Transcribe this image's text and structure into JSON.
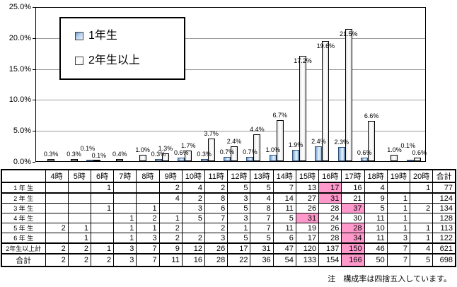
{
  "chart_data": {
    "type": "bar",
    "title": "",
    "xlabel": "",
    "ylabel": "",
    "unit": "%",
    "ylim": [
      0,
      25
    ],
    "grid": true,
    "legend_position": "inside-top-left",
    "categories": [
      "4時",
      "5時",
      "6時",
      "7時",
      "8時",
      "9時",
      "10時",
      "11時",
      "12時",
      "13時",
      "14時",
      "15時",
      "16時",
      "17時",
      "18時",
      "19時",
      "20時"
    ],
    "yticks": [
      {
        "label": "25.0%",
        "value": 25
      },
      {
        "label": "20.0%",
        "value": 20
      },
      {
        "label": "15.0%",
        "value": 15
      },
      {
        "label": "10.0%",
        "value": 10
      },
      {
        "label": "5.0%",
        "value": 5
      },
      {
        "label": "0.0%",
        "value": 0
      }
    ],
    "series": [
      {
        "name": "1年生",
        "color": "#a9c9e8",
        "border_color": "#31517a",
        "values": [
          null,
          null,
          0.1,
          null,
          null,
          0.3,
          0.6,
          0.3,
          0.7,
          0.7,
          1.0,
          1.9,
          2.4,
          2.3,
          0.6,
          null,
          0.1
        ]
      },
      {
        "name": "2年生以上",
        "color": "#ffffff",
        "border_color": "#000000",
        "values": [
          0.3,
          0.3,
          0.1,
          0.4,
          1.0,
          1.3,
          1.7,
          3.7,
          2.4,
          4.4,
          6.7,
          17.2,
          19.6,
          21.5,
          6.6,
          1.0,
          0.6
        ]
      }
    ]
  },
  "table": {
    "col_headers": [
      "",
      "4時",
      "5時",
      "6時",
      "7時",
      "8時",
      "9時",
      "10時",
      "11時",
      "12時",
      "13時",
      "14時",
      "15時",
      "16時",
      "17時",
      "18時",
      "19時",
      "20時",
      "合計"
    ],
    "highlight_color": "#ff99cc",
    "rows": [
      {
        "label": "1 年 生",
        "values": [
          "",
          "",
          "1",
          "",
          "",
          "2",
          "4",
          "2",
          "5",
          "5",
          "7",
          "13",
          "17",
          "16",
          "4",
          "",
          "1",
          "77"
        ],
        "highlight_col": 12
      },
      {
        "label": "2 年 生",
        "values": [
          "",
          "",
          "",
          "",
          "",
          "4",
          "2",
          "8",
          "3",
          "4",
          "14",
          "27",
          "31",
          "21",
          "9",
          "1",
          "",
          "124"
        ],
        "highlight_col": 12
      },
      {
        "label": "3 年 生",
        "values": [
          "",
          "",
          "1",
          "",
          "1",
          "",
          "3",
          "6",
          "5",
          "8",
          "11",
          "26",
          "28",
          "37",
          "5",
          "1",
          "2",
          "134"
        ],
        "highlight_col": 13
      },
      {
        "label": "4 年 生",
        "values": [
          "",
          "",
          "",
          "1",
          "2",
          "1",
          "5",
          "7",
          "3",
          "7",
          "5",
          "31",
          "24",
          "30",
          "11",
          "1",
          "",
          "128"
        ],
        "highlight_col": 11
      },
      {
        "label": "5 年 生",
        "values": [
          "2",
          "1",
          "",
          "1",
          "1",
          "2",
          "",
          "2",
          "1",
          "7",
          "11",
          "19",
          "26",
          "28",
          "10",
          "1",
          "1",
          "113"
        ],
        "highlight_col": 13
      },
      {
        "label": "6 年 生",
        "values": [
          "",
          "1",
          "",
          "1",
          "3",
          "2",
          "2",
          "3",
          "5",
          "5",
          "6",
          "17",
          "28",
          "34",
          "11",
          "3",
          "1",
          "122"
        ],
        "highlight_col": 13
      },
      {
        "label": "2年生以上計",
        "values": [
          "2",
          "2",
          "1",
          "3",
          "7",
          "9",
          "12",
          "26",
          "17",
          "31",
          "47",
          "120",
          "137",
          "150",
          "46",
          "7",
          "4",
          "621"
        ],
        "highlight_col": 13
      },
      {
        "label": "合計",
        "values": [
          "2",
          "2",
          "2",
          "3",
          "7",
          "11",
          "16",
          "28",
          "22",
          "36",
          "54",
          "133",
          "154",
          "166",
          "50",
          "7",
          "5",
          "698"
        ],
        "highlight_col": 13
      }
    ]
  },
  "note": "注　構成率は四捨五入しています。"
}
